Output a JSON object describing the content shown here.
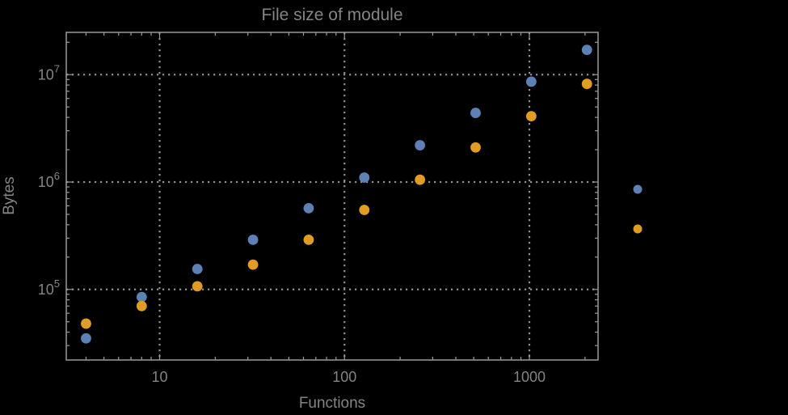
{
  "chart": {
    "title": "File size of module",
    "xlabel": "Functions",
    "ylabel": "Bytes",
    "colors": {
      "background": "#000000",
      "frame": "#9a9a9a",
      "grid": "#8f8f8f",
      "text": "#848484",
      "series_blue": "#5e81b5",
      "series_orange": "#e19c24"
    },
    "x_axis": {
      "scale": "log",
      "tick_values": [
        10,
        100,
        1000
      ],
      "tick_labels": [
        "10",
        "100",
        "1000"
      ]
    },
    "y_axis": {
      "scale": "log",
      "tick_base": "10",
      "tick_exponents": [
        5,
        6,
        7
      ]
    }
  },
  "legend": {
    "markers": [
      {
        "name": "blue-marker",
        "color": "#5e81b5"
      },
      {
        "name": "orange-marker",
        "color": "#e19c24"
      }
    ]
  },
  "chart_data": {
    "type": "scatter",
    "title": "File size of module",
    "xlabel": "Functions",
    "ylabel": "Bytes",
    "x_scale": "log",
    "y_scale": "log",
    "xlim": [
      3.2,
      2350
    ],
    "ylim": [
      22000,
      24500000
    ],
    "grid": "dotted lines at each decade",
    "legend_position": "right of frame, markers only (no visible labels)",
    "x": [
      4,
      8,
      16,
      32,
      64,
      128,
      256,
      512,
      1024,
      2048
    ],
    "series": [
      {
        "name": "series-1",
        "color": "#5e81b5",
        "values": [
          35000,
          85000,
          155000,
          290000,
          570000,
          1100000,
          2200000,
          4400000,
          8600000,
          17000000
        ]
      },
      {
        "name": "series-2",
        "color": "#e19c24",
        "values": [
          48000,
          70000,
          107000,
          170000,
          290000,
          550000,
          1050000,
          2100000,
          4100000,
          8200000
        ]
      }
    ]
  }
}
